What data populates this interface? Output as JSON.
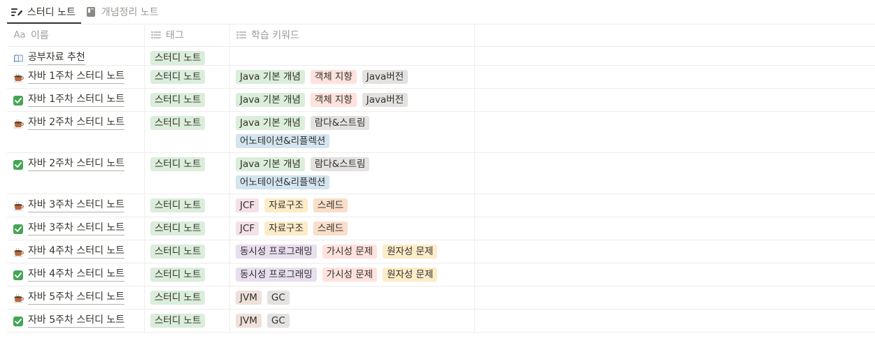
{
  "tabs": [
    {
      "label": "스터디 노트",
      "icon": "edit-list-icon",
      "active": true
    },
    {
      "label": "개념정리 노트",
      "icon": "notebook-icon",
      "active": false
    }
  ],
  "columns": {
    "name": {
      "icon": "Aa",
      "label": "이름"
    },
    "tag": {
      "icon": "list-icon",
      "label": "태그"
    },
    "keywords": {
      "icon": "list-icon",
      "label": "학습 키워드"
    }
  },
  "colors": {
    "green": "#dbeddb",
    "red": "#ffe2dd",
    "gray": "#e3e2e0",
    "blue": "#d3e5ef",
    "pink": "#f5e0e9",
    "yellow": "#fdecc8",
    "orange": "#fadec9",
    "purple": "#e8deee",
    "brown": "#eee0da",
    "check_green": "#45a557"
  },
  "rows": [
    {
      "icon": "book-icon",
      "name": "공부자료 추천",
      "tag": {
        "label": "스터디 노트",
        "color": "green"
      },
      "keywords": []
    },
    {
      "icon": "coffee-icon",
      "name": "자바 1주차 스터디 노트",
      "tag": {
        "label": "스터디 노트",
        "color": "green"
      },
      "keywords": [
        {
          "label": "Java 기본 개념",
          "color": "green"
        },
        {
          "label": "객체 지향",
          "color": "red"
        },
        {
          "label": "Java버전",
          "color": "gray"
        }
      ]
    },
    {
      "icon": "check-icon",
      "name": "자바 1주차 스터디 노트",
      "tag": {
        "label": "스터디 노트",
        "color": "green"
      },
      "keywords": [
        {
          "label": "Java 기본 개념",
          "color": "green"
        },
        {
          "label": "객체 지향",
          "color": "red"
        },
        {
          "label": "Java버전",
          "color": "gray"
        }
      ]
    },
    {
      "icon": "coffee-icon",
      "name": "자바 2주차 스터디 노트",
      "tag": {
        "label": "스터디 노트",
        "color": "green"
      },
      "keywords": [
        {
          "label": "Java 기본 개념",
          "color": "green"
        },
        {
          "label": "람다&스트림",
          "color": "gray"
        },
        {
          "label": "어노테이션&리플렉션",
          "color": "blue"
        }
      ]
    },
    {
      "icon": "check-icon",
      "name": "자바 2주차 스터디 노트",
      "tag": {
        "label": "스터디 노트",
        "color": "green"
      },
      "keywords": [
        {
          "label": "Java 기본 개념",
          "color": "green"
        },
        {
          "label": "람다&스트림",
          "color": "gray"
        },
        {
          "label": "어노테이션&리플렉션",
          "color": "blue"
        }
      ]
    },
    {
      "icon": "coffee-icon",
      "name": "자바 3주차 스터디 노트",
      "tag": {
        "label": "스터디 노트",
        "color": "green"
      },
      "keywords": [
        {
          "label": "JCF",
          "color": "pink"
        },
        {
          "label": "자료구조",
          "color": "yellow"
        },
        {
          "label": "스레드",
          "color": "orange"
        }
      ]
    },
    {
      "icon": "check-icon",
      "name": "자바 3주차 스터디 노트",
      "tag": {
        "label": "스터디 노트",
        "color": "green"
      },
      "keywords": [
        {
          "label": "JCF",
          "color": "pink"
        },
        {
          "label": "자료구조",
          "color": "yellow"
        },
        {
          "label": "스레드",
          "color": "orange"
        }
      ]
    },
    {
      "icon": "coffee-icon",
      "name": "자바 4주차 스터디 노트",
      "tag": {
        "label": "스터디 노트",
        "color": "green"
      },
      "keywords": [
        {
          "label": "동시성 프로그래밍",
          "color": "purple"
        },
        {
          "label": "가시성 문제",
          "color": "red"
        },
        {
          "label": "원자성 문제",
          "color": "yellow"
        }
      ]
    },
    {
      "icon": "check-icon",
      "name": "자바 4주차 스터디 노트",
      "tag": {
        "label": "스터디 노트",
        "color": "green"
      },
      "keywords": [
        {
          "label": "동시성 프로그래밍",
          "color": "purple"
        },
        {
          "label": "가시성 문제",
          "color": "red"
        },
        {
          "label": "원자성 문제",
          "color": "yellow"
        }
      ]
    },
    {
      "icon": "coffee-icon",
      "name": "자바 5주차 스터디 노트",
      "tag": {
        "label": "스터디 노트",
        "color": "green"
      },
      "keywords": [
        {
          "label": "JVM",
          "color": "brown"
        },
        {
          "label": "GC",
          "color": "gray"
        }
      ]
    },
    {
      "icon": "check-icon",
      "name": "자바 5주차 스터디 노트",
      "tag": {
        "label": "스터디 노트",
        "color": "green"
      },
      "keywords": [
        {
          "label": "JVM",
          "color": "brown"
        },
        {
          "label": "GC",
          "color": "gray"
        }
      ]
    }
  ]
}
